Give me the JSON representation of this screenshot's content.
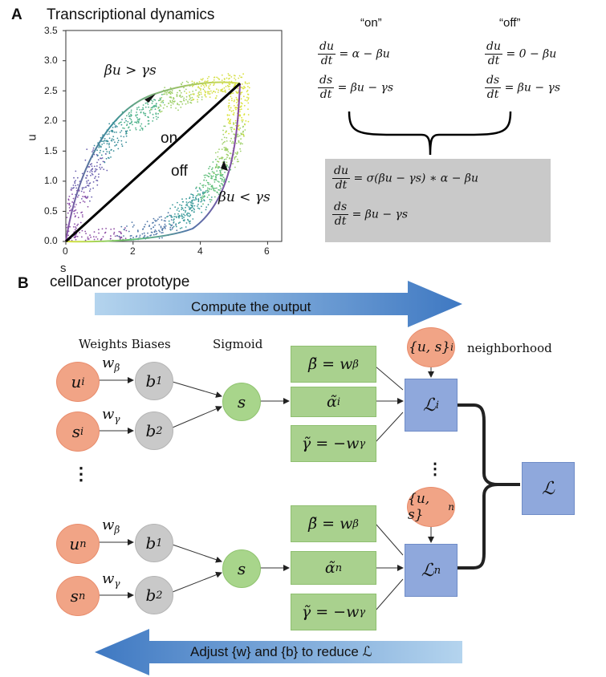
{
  "panel_a": {
    "letter": "A",
    "title": "Transcriptional dynamics",
    "plot": {
      "xlabel": "s",
      "ylabel": "u",
      "xticks": [
        "0",
        "2",
        "4",
        "6"
      ],
      "yticks": [
        "0.0",
        "0.5",
        "1.0",
        "1.5",
        "2.0",
        "2.5",
        "3.0",
        "3.5"
      ],
      "label_on": "on",
      "label_off": "off",
      "label_upper": "βu > γs",
      "label_lower": "βu < γs"
    },
    "equations": {
      "on_label": "“on”",
      "off_label": "“off”",
      "du": "du",
      "ds": "ds",
      "dt": "dt",
      "on_du_rhs": "= α − βu",
      "on_ds_rhs": "= βu − γs",
      "off_du_rhs": "= 0 − βu",
      "off_ds_rhs": "= βu − γs",
      "combined_du_rhs": "= σ(βu − γs) ∗ α − βu",
      "combined_ds_rhs": "= βu − γs"
    }
  },
  "panel_b": {
    "letter": "B",
    "title": "cellDancer prototype",
    "forward_arrow": "Compute the output",
    "backward_arrow": "Adjust {w} and {b} to reduce ℒ",
    "col_weights_biases": "Weights Biases",
    "col_sigmoid": "Sigmoid",
    "neighborhood": "neighborhood",
    "ellipsis": "⋮",
    "nodes": {
      "ui": "u",
      "ui_sub": "i",
      "si": "s",
      "si_sub": "i",
      "un": "u",
      "un_sub": "n",
      "sn": "s",
      "sn_sub": "n",
      "b1": "b",
      "b1_sub": "1",
      "b2": "b",
      "b2_sub": "2",
      "sigmoid": "s",
      "w_beta": "w",
      "w_beta_sub": "β",
      "w_gamma": "w",
      "w_gamma_sub": "γ"
    },
    "boxes": {
      "beta_tilde_i": "β̃ = w",
      "beta_sub": "β",
      "alpha_tilde_i": "α̃",
      "alpha_sup_i": "i",
      "gamma_tilde_i": "γ̃ = −w",
      "gamma_sub": "γ",
      "beta_tilde_n": "β̃ =  w",
      "alpha_tilde_n": "α̃",
      "alpha_sup_n": "n",
      "gamma_tilde_n": "γ̃ = −w"
    },
    "loss": {
      "L": "ℒ",
      "sup_i": "i",
      "sup_n": "n",
      "us_i": "{u, s}",
      "us_i_sub": "i",
      "us_n": "{u, s}",
      "us_n_sub": "n"
    }
  },
  "colors": {
    "red_node": "#f1a486",
    "grey_node": "#c9c9c9",
    "green": "#a9d18e",
    "blue_box": "#8fa8dc",
    "arrow_blue_dark": "#4a7fc4",
    "arrow_blue_light": "#a9cbea",
    "combined_eq_bg": "#c9c9c9"
  }
}
